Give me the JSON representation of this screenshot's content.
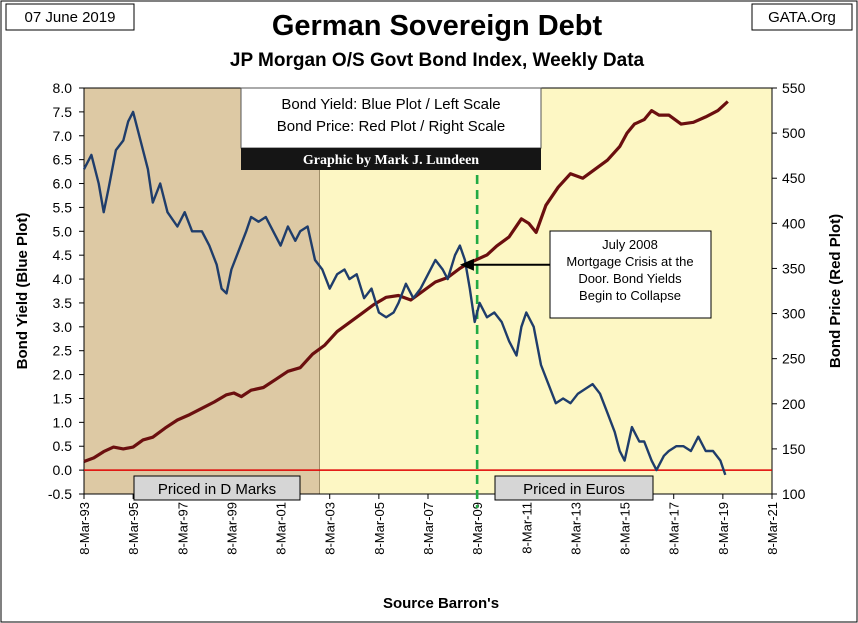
{
  "date_label": "07 June 2019",
  "source_label": "GATA.Org",
  "colors": {
    "yield": "#1f3d6b",
    "price": "#6b0f0f",
    "dmark_zone": "#ddc9a4",
    "euro_zone": "#fdf7c4",
    "zero_line": "#e00000",
    "euro_marker": "#22aa44"
  },
  "legend": {
    "line1": "Bond Yield: Blue Plot / Left Scale",
    "line2": "Bond Price: Red Plot / Right Scale",
    "credit": "Graphic by Mark J. Lundeen"
  },
  "annotation": {
    "lines": [
      "July 2008",
      "Mortgage Crisis at the",
      "Door.  Bond Yields",
      "Begin to Collapse"
    ],
    "arrow_x": 2008.5,
    "arrow_y": 4.3
  },
  "zones": [
    {
      "label": "Priced in D Marks",
      "from": 1993.2,
      "to": 2002.8
    },
    {
      "label": "Priced in Euros",
      "from": 2002.8,
      "to": 2020.0
    }
  ],
  "euro_marker_x": 2009.2,
  "chart_data": {
    "type": "line",
    "title": "German Sovereign Debt",
    "subtitle": "JP Morgan O/S Govt Bond Index, Weekly Data",
    "xlabel": "Source Barron's",
    "ylabel": "Bond  Yield  (Blue Plot)",
    "y2label": "Bond Price  (Red Plot)",
    "xlim": [
      1993.2,
      2021.2
    ],
    "ylim": [
      -0.5,
      8.0
    ],
    "y2lim": [
      100,
      550
    ],
    "x_ticks": [
      1993.2,
      1995.2,
      1997.2,
      1999.2,
      2001.2,
      2003.2,
      2005.2,
      2007.2,
      2009.2,
      2011.2,
      2013.2,
      2015.2,
      2017.2,
      2019.2,
      2021.2
    ],
    "x_tick_labels": [
      "8-Mar-93",
      "8-Mar-95",
      "8-Mar-97",
      "8-Mar-99",
      "8-Mar-01",
      "8-Mar-03",
      "8-Mar-05",
      "8-Mar-07",
      "8-Mar-09",
      "8-Mar-11",
      "8-Mar-13",
      "8-Mar-15",
      "8-Mar-17",
      "8-Mar-19",
      "8-Mar-21"
    ],
    "y_ticks": [
      "-0.5",
      "0.0",
      "0.5",
      "1.0",
      "1.5",
      "2.0",
      "2.5",
      "3.0",
      "3.5",
      "4.0",
      "4.5",
      "5.0",
      "5.5",
      "6.0",
      "6.5",
      "7.0",
      "7.5",
      "8.0"
    ],
    "y2_ticks": [
      "100",
      "150",
      "200",
      "250",
      "300",
      "350",
      "400",
      "450",
      "500",
      "550"
    ],
    "grid": false,
    "series": [
      {
        "name": "Bond Yield: Blue Plot / Left Scale",
        "axis": "left",
        "x": [
          1993.2,
          1993.5,
          1993.8,
          1994.0,
          1994.2,
          1994.5,
          1994.8,
          1995.0,
          1995.2,
          1995.5,
          1995.8,
          1996.0,
          1996.3,
          1996.6,
          1997.0,
          1997.3,
          1997.6,
          1998.0,
          1998.3,
          1998.6,
          1998.8,
          1999.0,
          1999.2,
          1999.5,
          1999.8,
          2000.0,
          2000.3,
          2000.6,
          2000.9,
          2001.2,
          2001.5,
          2001.8,
          2002.0,
          2002.3,
          2002.6,
          2002.9,
          2003.2,
          2003.5,
          2003.8,
          2004.0,
          2004.3,
          2004.6,
          2004.9,
          2005.2,
          2005.5,
          2005.8,
          2006.0,
          2006.3,
          2006.6,
          2006.9,
          2007.2,
          2007.5,
          2007.8,
          2008.0,
          2008.3,
          2008.5,
          2008.7,
          2008.9,
          2009.1,
          2009.3,
          2009.6,
          2009.9,
          2010.2,
          2010.5,
          2010.8,
          2011.0,
          2011.2,
          2011.5,
          2011.8,
          2012.1,
          2012.4,
          2012.7,
          2013.0,
          2013.3,
          2013.6,
          2013.9,
          2014.2,
          2014.5,
          2014.8,
          2015.0,
          2015.2,
          2015.5,
          2015.8,
          2016.0,
          2016.3,
          2016.5,
          2016.8,
          2017.0,
          2017.3,
          2017.6,
          2017.9,
          2018.2,
          2018.5,
          2018.8,
          2019.1,
          2019.3
        ],
        "y": [
          6.3,
          6.6,
          6.0,
          5.4,
          5.9,
          6.7,
          6.9,
          7.3,
          7.5,
          6.9,
          6.3,
          5.6,
          6.0,
          5.4,
          5.1,
          5.4,
          5.0,
          5.0,
          4.7,
          4.3,
          3.8,
          3.7,
          4.2,
          4.6,
          5.0,
          5.3,
          5.2,
          5.3,
          5.0,
          4.7,
          5.1,
          4.8,
          5.0,
          5.1,
          4.4,
          4.2,
          3.8,
          4.1,
          4.2,
          4.0,
          4.1,
          3.6,
          3.8,
          3.3,
          3.2,
          3.3,
          3.5,
          3.9,
          3.6,
          3.8,
          4.1,
          4.4,
          4.2,
          4.0,
          4.5,
          4.7,
          4.4,
          3.8,
          3.1,
          3.5,
          3.2,
          3.3,
          3.1,
          2.7,
          2.4,
          3.0,
          3.3,
          3.0,
          2.2,
          1.8,
          1.4,
          1.5,
          1.4,
          1.6,
          1.7,
          1.8,
          1.6,
          1.2,
          0.8,
          0.4,
          0.2,
          0.9,
          0.6,
          0.6,
          0.2,
          0.0,
          0.3,
          0.4,
          0.5,
          0.5,
          0.4,
          0.7,
          0.4,
          0.4,
          0.2,
          -0.1
        ]
      },
      {
        "name": "Bond Price: Red Plot / Right Scale",
        "axis": "right",
        "x": [
          1993.2,
          1993.6,
          1994.0,
          1994.4,
          1994.8,
          1995.2,
          1995.6,
          1996.0,
          1996.5,
          1997.0,
          1997.5,
          1998.0,
          1998.5,
          1999.0,
          1999.3,
          1999.6,
          2000.0,
          2000.5,
          2001.0,
          2001.5,
          2002.0,
          2002.5,
          2003.0,
          2003.5,
          2004.0,
          2004.5,
          2005.0,
          2005.5,
          2006.0,
          2006.5,
          2007.0,
          2007.5,
          2008.0,
          2008.5,
          2008.8,
          2009.2,
          2009.6,
          2010.0,
          2010.5,
          2011.0,
          2011.3,
          2011.6,
          2012.0,
          2012.5,
          2013.0,
          2013.5,
          2014.0,
          2014.5,
          2015.0,
          2015.3,
          2015.6,
          2016.0,
          2016.3,
          2016.6,
          2017.0,
          2017.5,
          2018.0,
          2018.5,
          2019.0,
          2019.4
        ],
        "y": [
          136,
          140,
          147,
          152,
          150,
          152,
          160,
          163,
          173,
          182,
          188,
          195,
          202,
          210,
          212,
          208,
          215,
          218,
          227,
          236,
          240,
          255,
          265,
          280,
          290,
          300,
          310,
          318,
          320,
          315,
          325,
          335,
          340,
          350,
          355,
          360,
          365,
          375,
          385,
          405,
          400,
          390,
          420,
          440,
          455,
          450,
          460,
          470,
          485,
          500,
          510,
          515,
          525,
          520,
          520,
          510,
          512,
          518,
          525,
          535
        ]
      }
    ]
  }
}
